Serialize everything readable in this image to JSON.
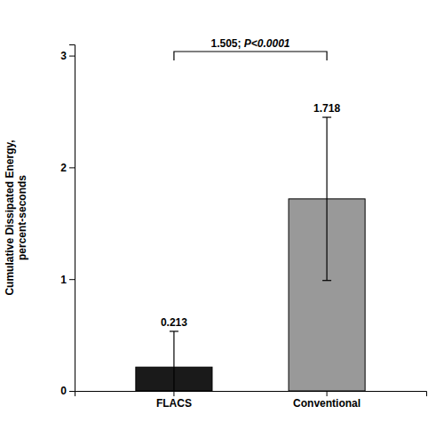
{
  "chart_data": {
    "type": "bar",
    "ylabel": "Cumulative Dissipated Energy,\npercent-seconds",
    "categories": [
      "FLACS",
      "Conventional"
    ],
    "values": [
      0.213,
      1.718
    ],
    "errors": [
      0.32,
      0.73
    ],
    "colors": [
      "#1a1a1a",
      "#999999"
    ],
    "ylim": [
      0,
      3.1
    ],
    "yticks": [
      0,
      1,
      2,
      3
    ],
    "data_labels": true,
    "annotations": [
      "1.505; ",
      "P<0.0001"
    ]
  }
}
